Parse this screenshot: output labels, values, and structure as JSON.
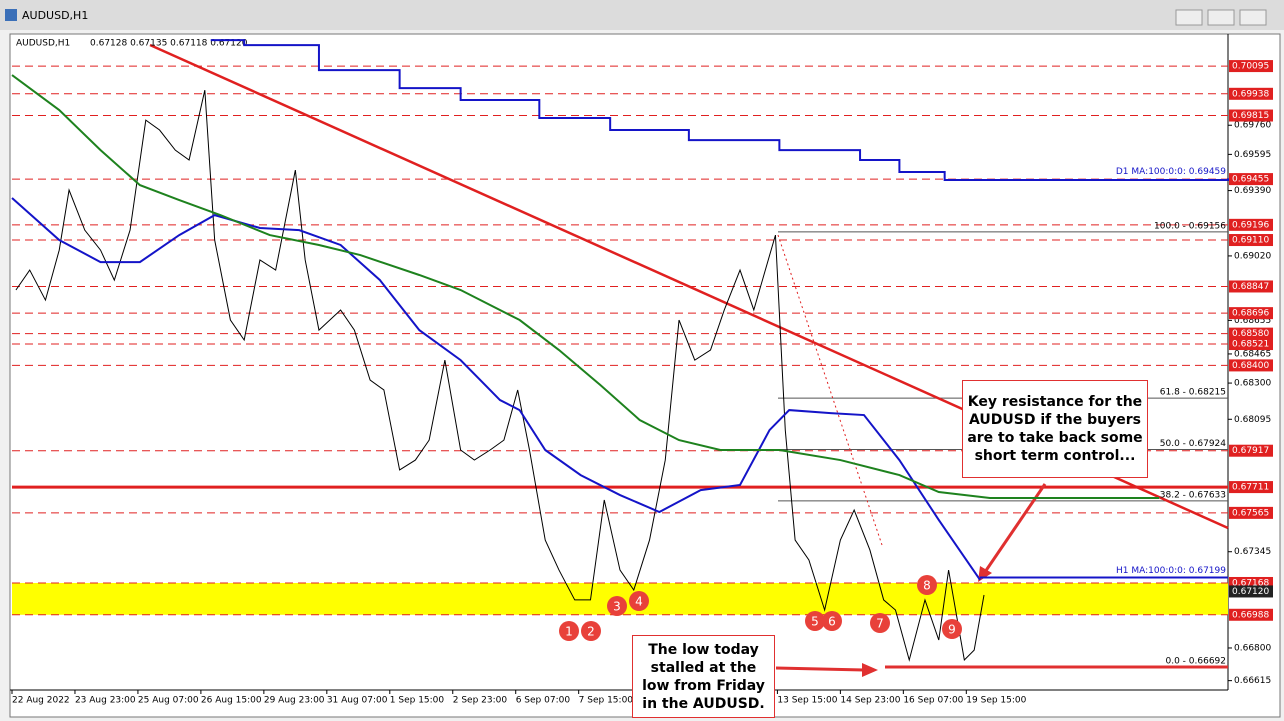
{
  "window": {
    "title": "AUDUSD,H1"
  },
  "chart_data": {
    "type": "line",
    "title": "AUDUSD,H1",
    "subtitle": "0.67128 0.67135 0.67118 0.67120",
    "xlim": [
      0,
      618
    ],
    "xticks": [
      {
        "value": 0,
        "label": "22 Aug 2022"
      },
      {
        "value": 32,
        "label": "23 Aug 23:00"
      },
      {
        "value": 64,
        "label": "25 Aug 07:00"
      },
      {
        "value": 96,
        "label": "26 Aug 15:00"
      },
      {
        "value": 128,
        "label": "29 Aug 23:00"
      },
      {
        "value": 160,
        "label": "31 Aug 07:00"
      },
      {
        "value": 192,
        "label": "1 Sep 15:00"
      },
      {
        "value": 224,
        "label": "2 Sep 23:00"
      },
      {
        "value": 256,
        "label": "6 Sep 07:00"
      },
      {
        "value": 288,
        "label": "7 Sep 15:00"
      },
      {
        "value": 389,
        "label": "13 Sep 15:00"
      },
      {
        "value": 421,
        "label": "14 Sep 23:00"
      },
      {
        "value": 453,
        "label": "16 Sep 07:00"
      },
      {
        "value": 485,
        "label": "19 Sep 15:00"
      }
    ],
    "ylim": [
      0.66562,
      0.70254
    ],
    "yticks": [
      {
        "value": 0.6976,
        "label": "0.69760"
      },
      0.69595,
      {
        "value": 0.6939,
        "label": "0.69390"
      },
      {
        "value": 0.6902,
        "label": "0.69020"
      },
      0.68655,
      0.68465,
      {
        "value": 0.683,
        "label": "0.68300"
      },
      0.68095,
      0.67345,
      {
        "value": 0.668,
        "label": "0.66800"
      },
      0.66615
    ],
    "levels": [
      0.70095,
      0.69938,
      0.69815,
      0.69455,
      0.69196,
      {
        "value": 0.6911,
        "label": "0.69110"
      },
      0.68847,
      0.68696,
      {
        "value": 0.6858,
        "label": "0.68580"
      },
      0.68521,
      {
        "value": 0.684,
        "label": "0.68400"
      },
      0.67917,
      {
        "value": 0.67711,
        "solid": true
      },
      0.67565,
      0.67168,
      0.66988
    ],
    "zone": {
      "from": 0.66988,
      "to": 0.67168,
      "color": "#ffff00"
    },
    "current_price": {
      "value": 0.6712,
      "label": "0.67120"
    },
    "fib": [
      {
        "value": 0.69156,
        "label": "100.0 - 0.69156"
      },
      {
        "value": 0.68215,
        "label": "61.8 - 0.68215"
      },
      {
        "value": 0.67924,
        "label": "50.0 - 0.67924"
      },
      {
        "value": 0.67633,
        "label": "38.2 - 0.67633"
      },
      {
        "value": 0.66692,
        "label": "0.0 - 0.66692"
      }
    ],
    "ma_labels": [
      {
        "value": 0.69459,
        "label": "D1 MA:100:0:0: 0.69459"
      },
      {
        "value": 0.67199,
        "label": "H1 MA:100:0:0: 0.67199"
      }
    ],
    "series": [
      {
        "color": "#000000",
        "x": [
          2,
          9,
          17,
          24,
          29,
          37,
          45,
          52,
          60,
          68,
          75,
          83,
          90,
          98,
          103,
          111,
          118,
          126,
          134,
          144,
          149,
          156,
          167,
          174,
          182,
          189,
          197,
          205,
          212,
          220,
          228,
          235,
          243,
          250,
          257,
          263,
          271,
          278,
          286,
          294,
          301,
          309,
          316,
          324,
          332,
          339,
          347,
          355,
          362,
          370,
          377,
          388,
          393,
          398,
          405,
          413,
          421,
          428,
          436,
          443,
          449,
          456,
          464,
          471,
          476,
          484,
          489,
          494
        ],
        "values": [
          0.68827,
          0.6894,
          0.6877,
          0.69053,
          0.69393,
          0.69166,
          0.69053,
          0.68883,
          0.69166,
          0.69789,
          0.69733,
          0.69619,
          0.69563,
          0.69959,
          0.6911,
          0.68657,
          0.68544,
          0.68997,
          0.6894,
          0.69506,
          0.68997,
          0.686,
          0.68714,
          0.686,
          0.68317,
          0.68261,
          0.67808,
          0.67864,
          0.67977,
          0.6843,
          0.67921,
          0.67864,
          0.67921,
          0.67977,
          0.68261,
          0.67921,
          0.67411,
          0.67241,
          0.67072,
          0.67072,
          0.67638,
          0.67241,
          0.67128,
          0.67411,
          0.67864,
          0.68657,
          0.6843,
          0.68487,
          0.68714,
          0.6894,
          0.68714,
          0.69138,
          0.68034,
          0.67411,
          0.67298,
          0.67015,
          0.67411,
          0.67581,
          0.67355,
          0.67072,
          0.67015,
          0.66732,
          0.67072,
          0.66845,
          0.67241,
          0.66732,
          0.66788,
          0.671
        ]
      },
      {
        "color": "#1414c8",
        "x": [
          0,
          24,
          45,
          65,
          85,
          103,
          126,
          146,
          167,
          187,
          207,
          228,
          248,
          258,
          271,
          289,
          309,
          329,
          350,
          370,
          385,
          395,
          416,
          433,
          451,
          471,
          492
        ],
        "values": [
          0.69348,
          0.6911,
          0.68985,
          0.68985,
          0.69138,
          0.69251,
          0.69178,
          0.69166,
          0.69082,
          0.68883,
          0.686,
          0.6843,
          0.68204,
          0.68147,
          0.67921,
          0.67779,
          0.67666,
          0.6757,
          0.67694,
          0.67723,
          0.68034,
          0.68147,
          0.6813,
          0.68119,
          0.67864,
          0.67525,
          0.67185
        ]
      },
      {
        "color": "#1e821e",
        "x": [
          0,
          24,
          45,
          65,
          85,
          106,
          131,
          156,
          177,
          207,
          228,
          258,
          278,
          299,
          319,
          339,
          360,
          390,
          421,
          451,
          471,
          497,
          583
        ],
        "values": [
          0.70044,
          0.69846,
          0.69619,
          0.69421,
          0.69336,
          0.69251,
          0.69138,
          0.69082,
          0.69025,
          0.68912,
          0.68827,
          0.68657,
          0.68487,
          0.68289,
          0.68091,
          0.67977,
          0.67921,
          0.67921,
          0.67864,
          0.67779,
          0.67683,
          0.67649,
          0.67649
        ]
      },
      {
        "color": "#1414c8",
        "step": true,
        "x": [
          101,
          118,
          156,
          197,
          228,
          268,
          304,
          344,
          390,
          431,
          451,
          474,
          618
        ],
        "values": [
          0.70242,
          0.70214,
          0.70072,
          0.6997,
          0.69903,
          0.69801,
          0.69733,
          0.69676,
          0.69619,
          0.69563,
          0.69495,
          0.6945,
          0.69459
        ]
      }
    ],
    "markers": [
      "1",
      "2",
      "3",
      "4",
      "5",
      "6",
      "7",
      "8",
      "9"
    ],
    "annotations": [
      "Key resistance for the AUDUSD  if the buyers are to take back some short term control...",
      "The low today stalled at the low from Friday in the AUDUSD."
    ]
  }
}
